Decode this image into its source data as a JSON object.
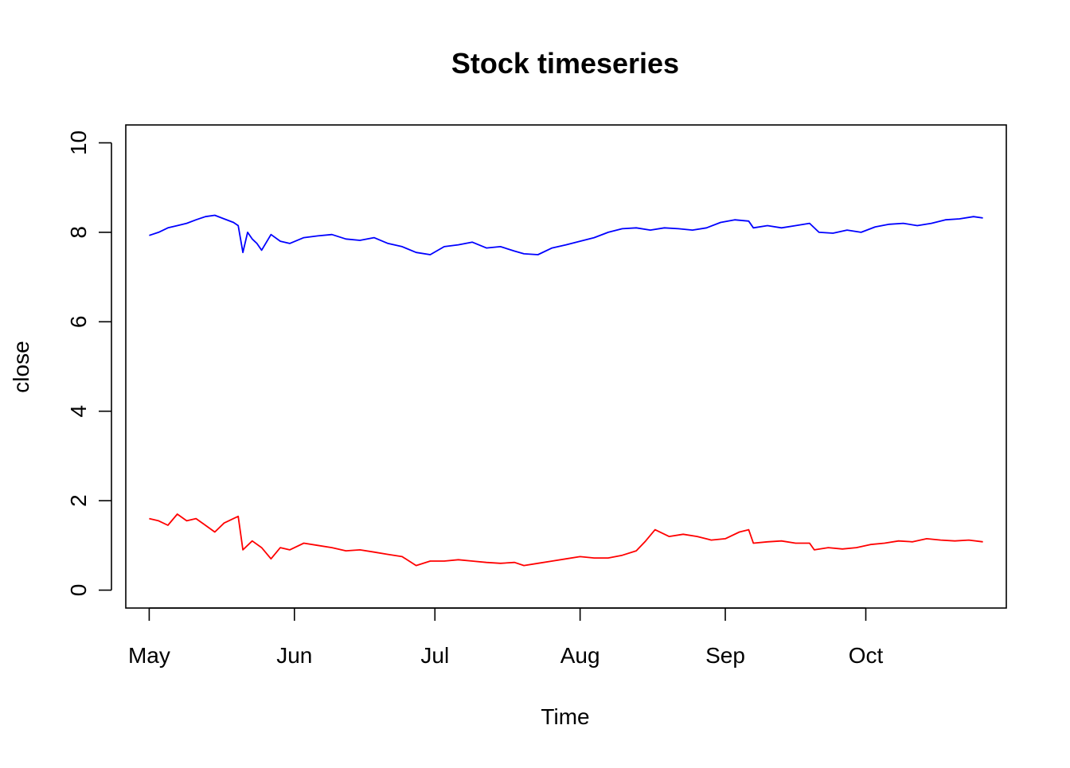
{
  "chart_data": {
    "type": "line",
    "title": "Stock timeseries",
    "xlabel": "Time",
    "ylabel": "close",
    "xlim": [
      "2023-04-26",
      "2023-10-31"
    ],
    "ylim": [
      -0.4,
      10.4
    ],
    "grid": false,
    "legend": "none",
    "x_ticks": [
      {
        "label": "May",
        "date": "2023-05-01"
      },
      {
        "label": "Jun",
        "date": "2023-06-01"
      },
      {
        "label": "Jul",
        "date": "2023-07-01"
      },
      {
        "label": "Aug",
        "date": "2023-08-01"
      },
      {
        "label": "Sep",
        "date": "2023-09-01"
      },
      {
        "label": "Oct",
        "date": "2023-10-01"
      }
    ],
    "y_ticks": [
      0,
      2,
      4,
      6,
      8,
      10
    ],
    "series": [
      {
        "color": "#0000ff",
        "x": [
          "2023-05-01",
          "2023-05-03",
          "2023-05-05",
          "2023-05-07",
          "2023-05-09",
          "2023-05-11",
          "2023-05-13",
          "2023-05-15",
          "2023-05-17",
          "2023-05-19",
          "2023-05-20",
          "2023-05-21",
          "2023-05-22",
          "2023-05-23",
          "2023-05-24",
          "2023-05-25",
          "2023-05-27",
          "2023-05-29",
          "2023-05-31",
          "2023-06-03",
          "2023-06-06",
          "2023-06-09",
          "2023-06-12",
          "2023-06-15",
          "2023-06-18",
          "2023-06-21",
          "2023-06-24",
          "2023-06-27",
          "2023-06-30",
          "2023-07-03",
          "2023-07-06",
          "2023-07-09",
          "2023-07-12",
          "2023-07-15",
          "2023-07-18",
          "2023-07-20",
          "2023-07-23",
          "2023-07-26",
          "2023-07-29",
          "2023-08-01",
          "2023-08-04",
          "2023-08-07",
          "2023-08-10",
          "2023-08-13",
          "2023-08-16",
          "2023-08-19",
          "2023-08-22",
          "2023-08-25",
          "2023-08-28",
          "2023-08-31",
          "2023-09-03",
          "2023-09-06",
          "2023-09-07",
          "2023-09-10",
          "2023-09-13",
          "2023-09-16",
          "2023-09-19",
          "2023-09-21",
          "2023-09-24",
          "2023-09-27",
          "2023-09-30",
          "2023-10-03",
          "2023-10-06",
          "2023-10-09",
          "2023-10-12",
          "2023-10-15",
          "2023-10-18",
          "2023-10-21",
          "2023-10-24",
          "2023-10-26"
        ],
        "y": [
          7.93,
          8.0,
          8.1,
          8.15,
          8.2,
          8.28,
          8.35,
          8.38,
          8.3,
          8.22,
          8.15,
          7.55,
          8.0,
          7.85,
          7.75,
          7.6,
          7.95,
          7.8,
          7.75,
          7.88,
          7.92,
          7.95,
          7.85,
          7.82,
          7.88,
          7.75,
          7.68,
          7.55,
          7.5,
          7.68,
          7.72,
          7.78,
          7.65,
          7.68,
          7.58,
          7.52,
          7.5,
          7.65,
          7.72,
          7.8,
          7.88,
          8.0,
          8.08,
          8.1,
          8.05,
          8.1,
          8.08,
          8.05,
          8.1,
          8.22,
          8.28,
          8.25,
          8.1,
          8.15,
          8.1,
          8.15,
          8.2,
          8.0,
          7.98,
          8.05,
          8.0,
          8.12,
          8.18,
          8.2,
          8.15,
          8.2,
          8.28,
          8.3,
          8.35,
          8.32
        ]
      },
      {
        "color": "#ff0000",
        "x": [
          "2023-05-01",
          "2023-05-03",
          "2023-05-05",
          "2023-05-07",
          "2023-05-09",
          "2023-05-11",
          "2023-05-13",
          "2023-05-15",
          "2023-05-17",
          "2023-05-19",
          "2023-05-20",
          "2023-05-21",
          "2023-05-23",
          "2023-05-25",
          "2023-05-27",
          "2023-05-29",
          "2023-05-31",
          "2023-06-03",
          "2023-06-06",
          "2023-06-09",
          "2023-06-12",
          "2023-06-15",
          "2023-06-18",
          "2023-06-21",
          "2023-06-24",
          "2023-06-27",
          "2023-06-30",
          "2023-07-03",
          "2023-07-06",
          "2023-07-09",
          "2023-07-12",
          "2023-07-15",
          "2023-07-18",
          "2023-07-20",
          "2023-07-23",
          "2023-07-26",
          "2023-07-29",
          "2023-08-01",
          "2023-08-04",
          "2023-08-07",
          "2023-08-10",
          "2023-08-13",
          "2023-08-15",
          "2023-08-17",
          "2023-08-20",
          "2023-08-23",
          "2023-08-26",
          "2023-08-29",
          "2023-09-01",
          "2023-09-04",
          "2023-09-06",
          "2023-09-07",
          "2023-09-10",
          "2023-09-13",
          "2023-09-16",
          "2023-09-19",
          "2023-09-20",
          "2023-09-23",
          "2023-09-26",
          "2023-09-29",
          "2023-10-02",
          "2023-10-05",
          "2023-10-08",
          "2023-10-11",
          "2023-10-14",
          "2023-10-17",
          "2023-10-20",
          "2023-10-23",
          "2023-10-26"
        ],
        "y": [
          1.6,
          1.55,
          1.45,
          1.7,
          1.55,
          1.6,
          1.45,
          1.3,
          1.5,
          1.6,
          1.65,
          0.9,
          1.1,
          0.95,
          0.7,
          0.95,
          0.9,
          1.05,
          1.0,
          0.95,
          0.88,
          0.9,
          0.85,
          0.8,
          0.75,
          0.55,
          0.65,
          0.65,
          0.68,
          0.65,
          0.62,
          0.6,
          0.62,
          0.55,
          0.6,
          0.65,
          0.7,
          0.75,
          0.72,
          0.72,
          0.78,
          0.88,
          1.1,
          1.35,
          1.2,
          1.25,
          1.2,
          1.12,
          1.15,
          1.3,
          1.35,
          1.05,
          1.08,
          1.1,
          1.05,
          1.05,
          0.9,
          0.95,
          0.92,
          0.95,
          1.02,
          1.05,
          1.1,
          1.08,
          1.15,
          1.12,
          1.1,
          1.12,
          1.08
        ]
      }
    ]
  }
}
